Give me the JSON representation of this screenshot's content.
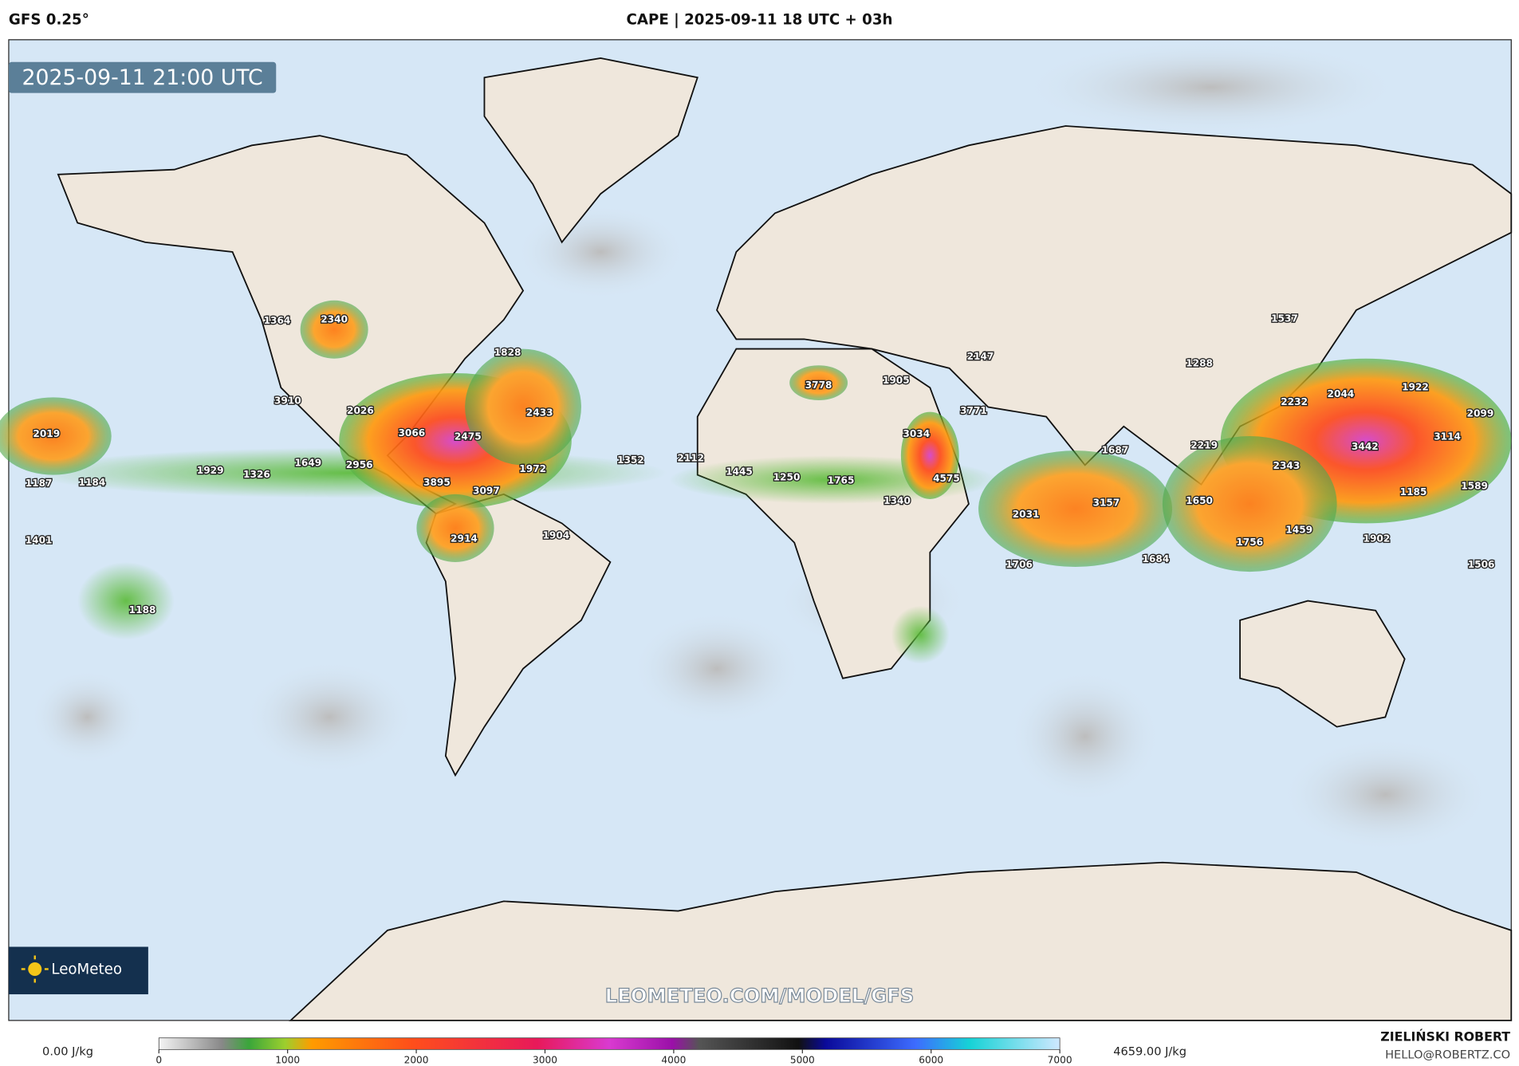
{
  "header": {
    "model": "GFS 0.25°",
    "title": "CAPE | 2025-09-11 18 UTC + 03h"
  },
  "map": {
    "valid_time": "2025-09-11 21:00 UTC",
    "watermark": "LEOMETEO.COM/MODEL/GFS",
    "logo": "LeoMeteo",
    "labels": [
      1364,
      2340,
      1828,
      3910,
      2026,
      3066,
      2475,
      2433,
      2019,
      1187,
      1184,
      1929,
      1326,
      1649,
      2956,
      1972,
      1352,
      3895,
      3097,
      2914,
      1904,
      1401,
      1188,
      2112,
      1445,
      1250,
      1765,
      1340,
      3778,
      1905,
      3034,
      4575,
      2147,
      3771,
      1687,
      3157,
      2031,
      1706,
      1684,
      1288,
      1537,
      2219,
      1650,
      2232,
      2044,
      1922,
      2099,
      3442,
      3114,
      2343,
      1185,
      1589,
      1459,
      1756,
      1902,
      1506
    ]
  },
  "colorbar": {
    "min_label": "0.00 J/kg",
    "max_label": "4659.00 J/kg",
    "range": [
      0,
      7000
    ],
    "ticks": [
      0,
      1000,
      2000,
      3000,
      4000,
      5000,
      6000,
      7000
    ]
  },
  "footer": {
    "author": "ZIELIŃSKI ROBERT",
    "email": "HELLO@ROBERTZ.CO"
  }
}
